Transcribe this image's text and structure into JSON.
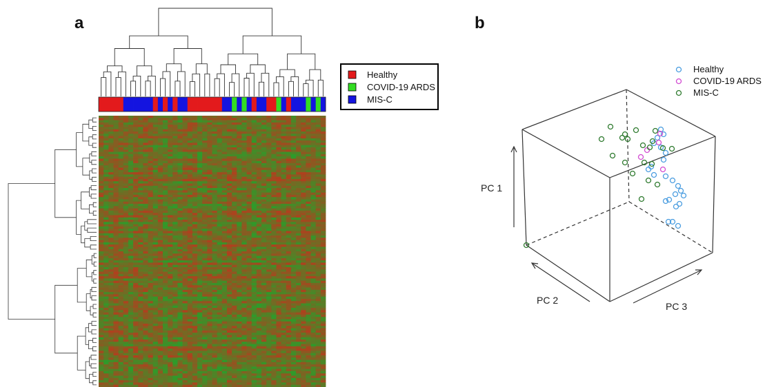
{
  "panels": {
    "a_label": "a",
    "b_label": "b"
  },
  "colors": {
    "healthy_bar": "#e31a1c",
    "ards_bar": "#33dd22",
    "misc_bar": "#1414e0",
    "heat_red": "#b0401e",
    "heat_green": "#2f9a2a",
    "healthy_point": "#4a9de0",
    "ards_point": "#d24bd2",
    "misc_point": "#2e7a2e"
  },
  "chart_data": [
    {
      "type": "heatmap",
      "title": "",
      "legend": {
        "placement": "right",
        "entries": [
          "Healthy",
          "COVID-19 ARDS",
          "MIS-C"
        ]
      },
      "sample_groups": [
        "Healthy",
        "Healthy",
        "Healthy",
        "Healthy",
        "Healthy",
        "MIS-C",
        "MIS-C",
        "MIS-C",
        "MIS-C",
        "MIS-C",
        "MIS-C",
        "Healthy",
        "MIS-C",
        "Healthy",
        "MIS-C",
        "Healthy",
        "MIS-C",
        "MIS-C",
        "Healthy",
        "Healthy",
        "Healthy",
        "Healthy",
        "Healthy",
        "Healthy",
        "Healthy",
        "MIS-C",
        "MIS-C",
        "COVID-19 ARDS",
        "MIS-C",
        "COVID-19 ARDS",
        "MIS-C",
        "Healthy",
        "MIS-C",
        "MIS-C",
        "Healthy",
        "Healthy",
        "COVID-19 ARDS",
        "MIS-C",
        "Healthy",
        "MIS-C",
        "MIS-C",
        "MIS-C",
        "COVID-19 ARDS",
        "MIS-C",
        "COVID-19 ARDS",
        "MIS-C"
      ],
      "color_scale": [
        "green",
        "red"
      ]
    },
    {
      "type": "scatter",
      "subtype": "3d",
      "axes": {
        "x": "PC 3",
        "y": "PC 1",
        "z": "PC 2"
      },
      "legend": {
        "placement": "top-right",
        "entries": [
          "Healthy",
          "COVID-19 ARDS",
          "MIS-C"
        ]
      },
      "series": [
        {
          "name": "Healthy",
          "points": [
            [
              958,
              188
            ],
            [
              962,
              195
            ],
            [
              953,
              200
            ],
            [
              948,
              208
            ],
            [
              958,
              214
            ],
            [
              965,
              222
            ],
            [
              962,
              232
            ],
            [
              944,
              242
            ],
            [
              940,
              246
            ],
            [
              948,
              254
            ],
            [
              965,
              256
            ],
            [
              975,
              262
            ],
            [
              983,
              270
            ],
            [
              987,
              277
            ],
            [
              979,
              282
            ],
            [
              991,
              284
            ],
            [
              970,
              290
            ],
            [
              985,
              296
            ],
            [
              980,
              300
            ],
            [
              965,
              292
            ],
            [
              975,
              322
            ],
            [
              969,
              322
            ],
            [
              983,
              328
            ]
          ]
        },
        {
          "name": "COVID-19 ARDS",
          "points": [
            [
              957,
              194
            ],
            [
              955,
              207
            ],
            [
              938,
              218
            ],
            [
              929,
              228
            ],
            [
              961,
              246
            ]
          ]
        },
        {
          "name": "MIS-C",
          "points": [
            [
              885,
              184
            ],
            [
              922,
              189
            ],
            [
              950,
              190
            ],
            [
              906,
              195
            ],
            [
              902,
              200
            ],
            [
              910,
              202
            ],
            [
              872,
              202
            ],
            [
              946,
              205
            ],
            [
              932,
              211
            ],
            [
              942,
              214
            ],
            [
              961,
              215
            ],
            [
              974,
              216
            ],
            [
              888,
              226
            ],
            [
              934,
              236
            ],
            [
              906,
              236
            ],
            [
              945,
              238
            ],
            [
              917,
              252
            ],
            [
              940,
              262
            ],
            [
              953,
              268
            ],
            [
              930,
              289
            ],
            [
              763,
              356
            ]
          ]
        }
      ]
    }
  ]
}
